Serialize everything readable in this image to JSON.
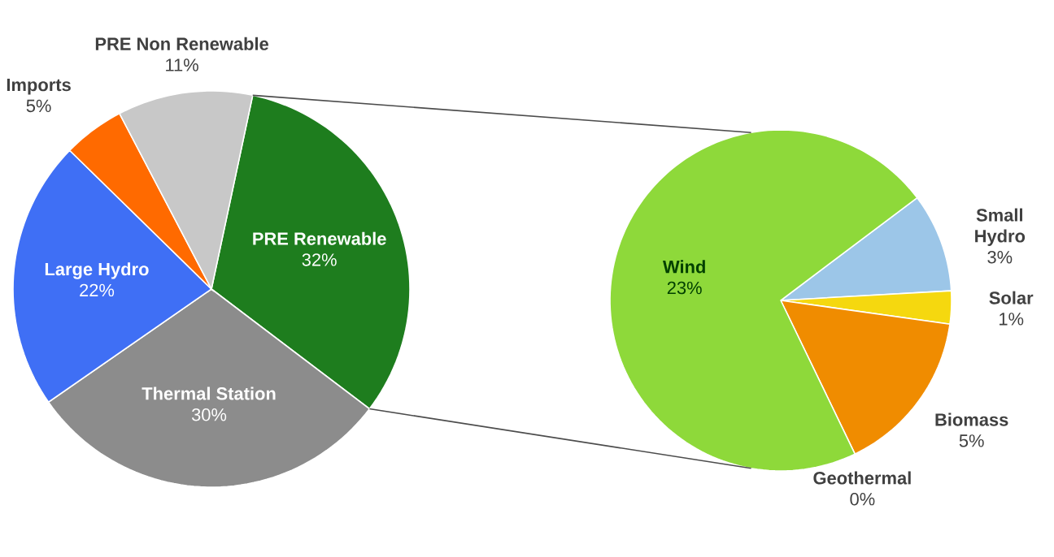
{
  "chart_data": [
    {
      "type": "pie",
      "categories": [
        "PRE Renewable",
        "Thermal Station",
        "Large Hydro",
        "Imports",
        "PRE Non Renewable"
      ],
      "values": [
        32,
        30,
        22,
        5,
        11
      ],
      "value_labels": [
        "32%",
        "30%",
        "22%",
        "5%",
        "11%"
      ],
      "colors": [
        "#1e7d1e",
        "#8c8c8c",
        "#3f6ff5",
        "#ff6a00",
        "#c8c8c8"
      ]
    },
    {
      "type": "pie",
      "categories": [
        "Small Hydro",
        "Solar",
        "Biomass",
        "Geothermal",
        "Wind"
      ],
      "values": [
        3,
        1,
        5,
        0,
        23
      ],
      "value_labels": [
        "3%",
        "1%",
        "5%",
        "0%",
        "23%"
      ],
      "colors": [
        "#9cc6e8",
        "#f5d80f",
        "#f08c00",
        "#b5dba0",
        "#8ed93a"
      ]
    }
  ]
}
